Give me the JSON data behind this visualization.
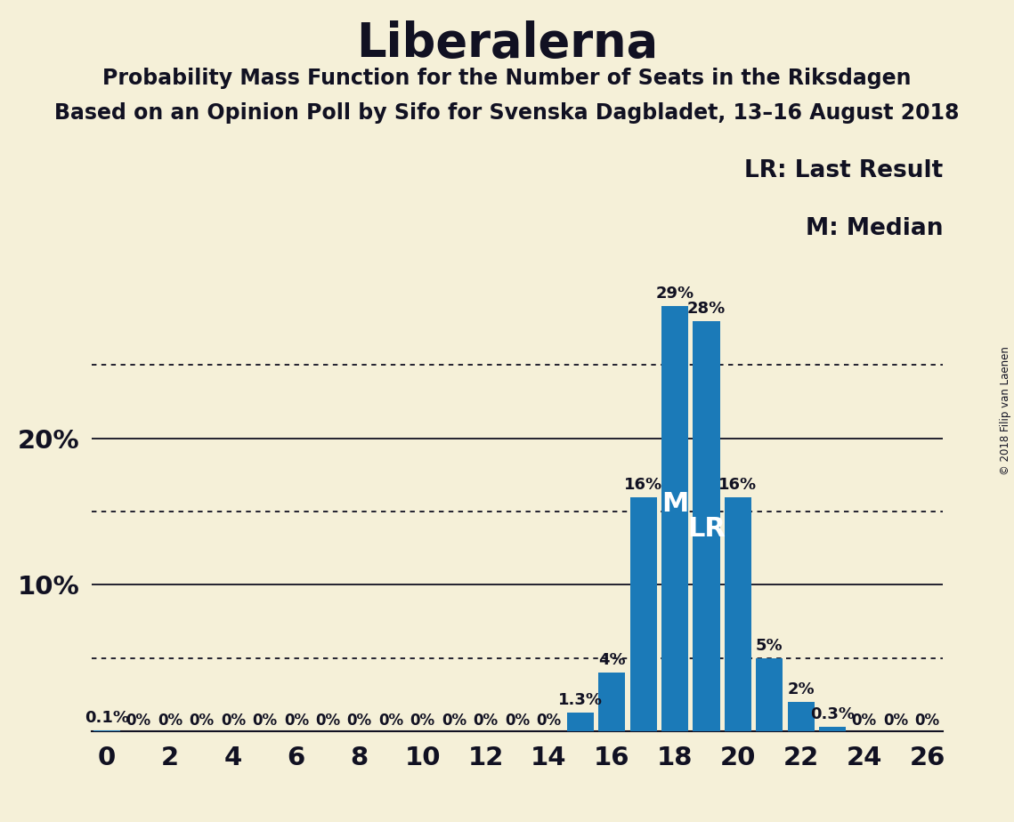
{
  "title": "Liberalerna",
  "subtitle1": "Probability Mass Function for the Number of Seats in the Riksdagen",
  "subtitle2": "Based on an Opinion Poll by Sifo for Svenska Dagbladet, 13–16 August 2018",
  "copyright": "© 2018 Filip van Laenen",
  "legend_lr": "LR: Last Result",
  "legend_m": "M: Median",
  "seats": [
    0,
    1,
    2,
    3,
    4,
    5,
    6,
    7,
    8,
    9,
    10,
    11,
    12,
    13,
    14,
    15,
    16,
    17,
    18,
    19,
    20,
    21,
    22,
    23,
    24,
    25,
    26
  ],
  "values": [
    0.001,
    0.0,
    0.0,
    0.0,
    0.0,
    0.0,
    0.0,
    0.0,
    0.0,
    0.0,
    0.0,
    0.0,
    0.0,
    0.0,
    0.0,
    0.013,
    0.04,
    0.16,
    0.29,
    0.28,
    0.16,
    0.05,
    0.02,
    0.003,
    0.0,
    0.0,
    0.0
  ],
  "bar_color": "#1b7ab8",
  "background_color": "#f5f0d8",
  "median_seat": 18,
  "lr_seat": 19,
  "xlim": [
    -0.5,
    26.5
  ],
  "ylim": [
    0,
    0.325
  ],
  "xticks": [
    0,
    2,
    4,
    6,
    8,
    10,
    12,
    14,
    16,
    18,
    20,
    22,
    24,
    26
  ],
  "ytick_solid": [
    0.1,
    0.2
  ],
  "ytick_dotted": [
    0.05,
    0.15,
    0.25
  ],
  "label_map_keys": [
    0,
    15,
    16,
    17,
    18,
    19,
    20,
    21,
    22,
    23
  ],
  "label_map_vals": [
    "0.1%",
    "1.3%",
    "4%",
    "16%",
    "29%",
    "28%",
    "16%",
    "5%",
    "2%",
    "0.3%"
  ],
  "zero_seats": [
    1,
    2,
    3,
    4,
    5,
    6,
    7,
    8,
    9,
    10,
    11,
    12,
    13,
    14,
    24,
    25,
    26
  ]
}
